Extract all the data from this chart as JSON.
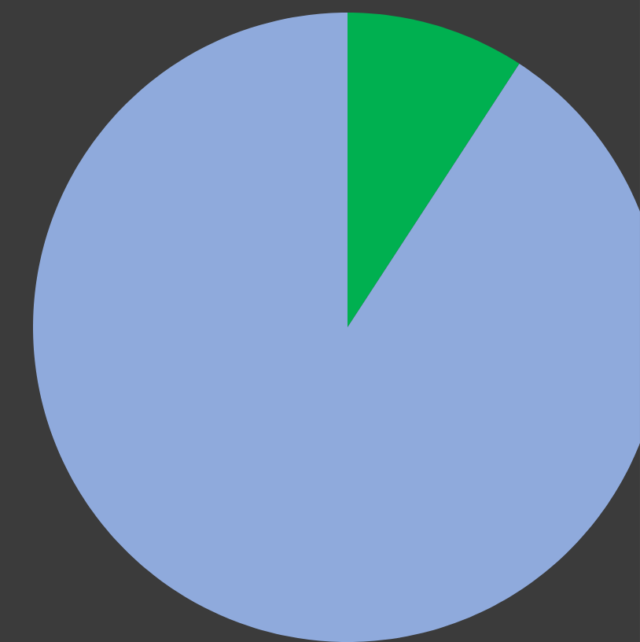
{
  "chart_data": {
    "type": "pie",
    "categories": [
      null,
      null
    ],
    "values": [
      9.2,
      90.8
    ],
    "colors": [
      "#00b050",
      "#8faadc"
    ]
  }
}
